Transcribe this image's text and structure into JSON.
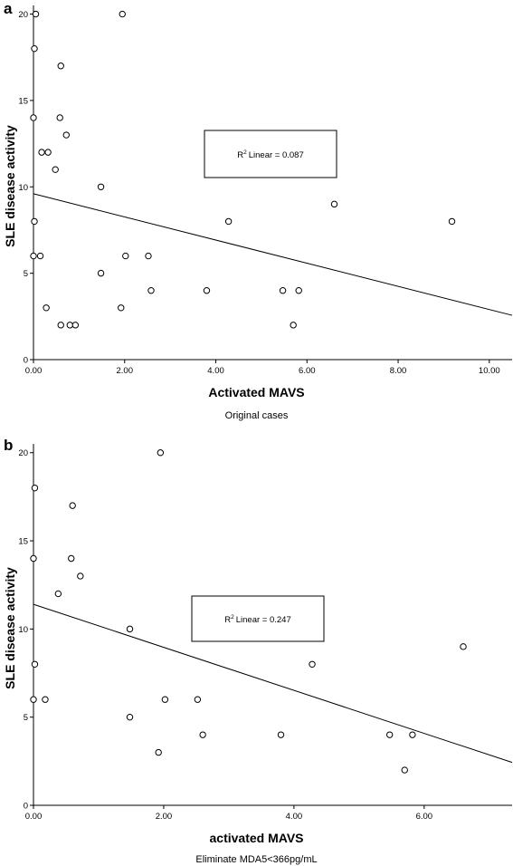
{
  "chart_data": [
    {
      "panel_label": "a",
      "type": "scatter",
      "xlabel": "Activated MAVS",
      "ylabel": "SLE disease activity",
      "caption": "Original cases",
      "xlim": [
        0,
        10.5
      ],
      "ylim": [
        0,
        20.5
      ],
      "xticks": [
        "0.00",
        "2.00",
        "4.00",
        "6.00",
        "8.00",
        "10.00"
      ],
      "xtick_values": [
        0,
        2,
        4,
        6,
        8,
        10
      ],
      "yticks": [
        "0",
        "5",
        "10",
        "15",
        "20"
      ],
      "ytick_values": [
        0,
        5,
        10,
        15,
        20
      ],
      "r2_label": "Linear = 0.087",
      "r2_prefix": "R",
      "r2_sup": "2",
      "fit_line": {
        "intercept": 9.6,
        "slope": -0.67
      },
      "points": [
        [
          0.05,
          20
        ],
        [
          1.95,
          20
        ],
        [
          0.02,
          18
        ],
        [
          0.6,
          17
        ],
        [
          0.0,
          14
        ],
        [
          0.58,
          14
        ],
        [
          0.72,
          13
        ],
        [
          0.18,
          12
        ],
        [
          0.32,
          12
        ],
        [
          0.48,
          11
        ],
        [
          1.48,
          10
        ],
        [
          6.6,
          9
        ],
        [
          0.02,
          8
        ],
        [
          4.28,
          8
        ],
        [
          9.18,
          8
        ],
        [
          0.0,
          6
        ],
        [
          0.15,
          6
        ],
        [
          2.02,
          6
        ],
        [
          2.52,
          6
        ],
        [
          1.48,
          5
        ],
        [
          2.58,
          4
        ],
        [
          3.8,
          4
        ],
        [
          5.47,
          4
        ],
        [
          5.82,
          4
        ],
        [
          0.28,
          3
        ],
        [
          1.92,
          3
        ],
        [
          0.6,
          2
        ],
        [
          0.8,
          2
        ],
        [
          0.92,
          2
        ],
        [
          5.7,
          2
        ]
      ]
    },
    {
      "panel_label": "b",
      "type": "scatter",
      "xlabel": "activated MAVS",
      "ylabel": "SLE disease activity",
      "caption": "Eliminate MDA5<366pg/mL",
      "xlim": [
        0,
        7.35
      ],
      "ylim": [
        0,
        20.5
      ],
      "xticks": [
        "0.00",
        "2.00",
        "4.00",
        "6.00"
      ],
      "xtick_values": [
        0,
        2,
        4,
        6
      ],
      "yticks": [
        "0",
        "5",
        "10",
        "15",
        "20"
      ],
      "ytick_values": [
        0,
        5,
        10,
        15,
        20
      ],
      "r2_label": "Linear = 0.247",
      "r2_prefix": "R",
      "r2_sup": "2",
      "fit_line": {
        "intercept": 11.4,
        "slope": -1.22
      },
      "points": [
        [
          1.95,
          20
        ],
        [
          0.02,
          18
        ],
        [
          0.6,
          17
        ],
        [
          0.0,
          14
        ],
        [
          0.58,
          14
        ],
        [
          0.72,
          13
        ],
        [
          0.38,
          12
        ],
        [
          1.48,
          10
        ],
        [
          6.6,
          9
        ],
        [
          0.02,
          8
        ],
        [
          4.28,
          8
        ],
        [
          0.0,
          6
        ],
        [
          0.18,
          6
        ],
        [
          2.02,
          6
        ],
        [
          2.52,
          6
        ],
        [
          1.48,
          5
        ],
        [
          2.6,
          4
        ],
        [
          3.8,
          4
        ],
        [
          5.47,
          4
        ],
        [
          5.82,
          4
        ],
        [
          1.92,
          3
        ],
        [
          5.7,
          2
        ]
      ]
    }
  ]
}
